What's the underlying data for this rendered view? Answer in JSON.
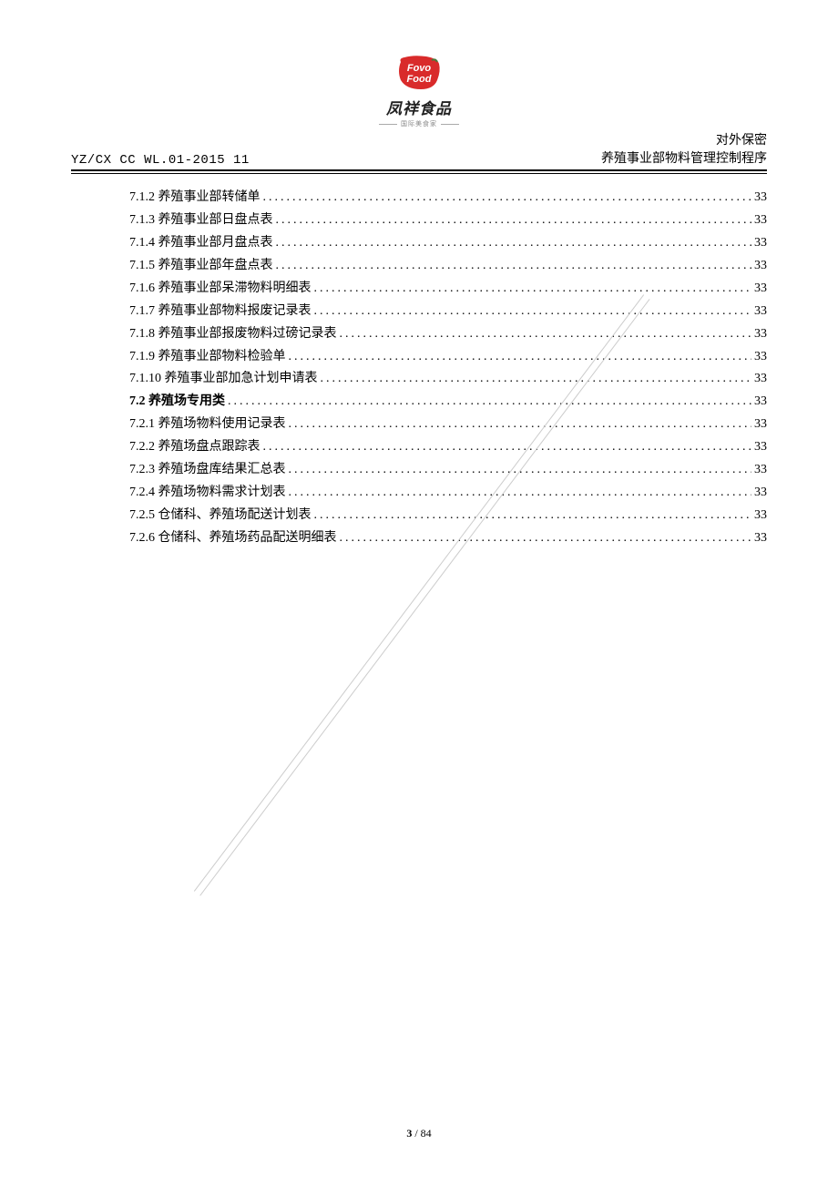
{
  "logo": {
    "brand_name": "凤祥食品",
    "tagline": "国际美食家",
    "badge_color": "#d92b2b",
    "badge_text_color": "#ffffff"
  },
  "header": {
    "doc_code": "YZ/CX CC WL.01-2015 11",
    "confidentiality": "对外保密",
    "title": "养殖事业部物料管理控制程序"
  },
  "toc": [
    {
      "num": "7.1.2",
      "title": "养殖事业部转储单",
      "page": "33",
      "bold": false
    },
    {
      "num": "7.1.3",
      "title": "养殖事业部日盘点表",
      "page": "33",
      "bold": false
    },
    {
      "num": "7.1.4",
      "title": "养殖事业部月盘点表",
      "page": "33",
      "bold": false
    },
    {
      "num": "7.1.5",
      "title": "养殖事业部年盘点表",
      "page": "33",
      "bold": false
    },
    {
      "num": "7.1.6",
      "title": "养殖事业部呆滞物料明细表",
      "page": "33",
      "bold": false
    },
    {
      "num": "7.1.7",
      "title": "养殖事业部物料报废记录表",
      "page": "33",
      "bold": false
    },
    {
      "num": "7.1.8",
      "title": "养殖事业部报废物料过磅记录表",
      "page": "33",
      "bold": false
    },
    {
      "num": "7.1.9",
      "title": "养殖事业部物料检验单",
      "page": "33",
      "bold": false
    },
    {
      "num": "7.1.10",
      "title": "养殖事业部加急计划申请表",
      "page": "33",
      "bold": false
    },
    {
      "num": "7.2",
      "title": "养殖场专用类",
      "page": "33",
      "bold": true
    },
    {
      "num": "7.2.1",
      "title": "养殖场物料使用记录表",
      "page": "33",
      "bold": false
    },
    {
      "num": "7.2.2",
      "title": "养殖场盘点跟踪表",
      "page": "33",
      "bold": false
    },
    {
      "num": "7.2.3",
      "title": "养殖场盘库结果汇总表",
      "page": "33",
      "bold": false
    },
    {
      "num": "7.2.4",
      "title": "养殖场物料需求计划表",
      "page": "33",
      "bold": false
    },
    {
      "num": "7.2.5",
      "title": "仓储科、养殖场配送计划表",
      "page": "33",
      "bold": false
    },
    {
      "num": "7.2.6",
      "title": "仓储科、养殖场药品配送明细表",
      "page": "33",
      "bold": false
    }
  ],
  "footer": {
    "current": "3",
    "sep": " / ",
    "total": "84"
  }
}
